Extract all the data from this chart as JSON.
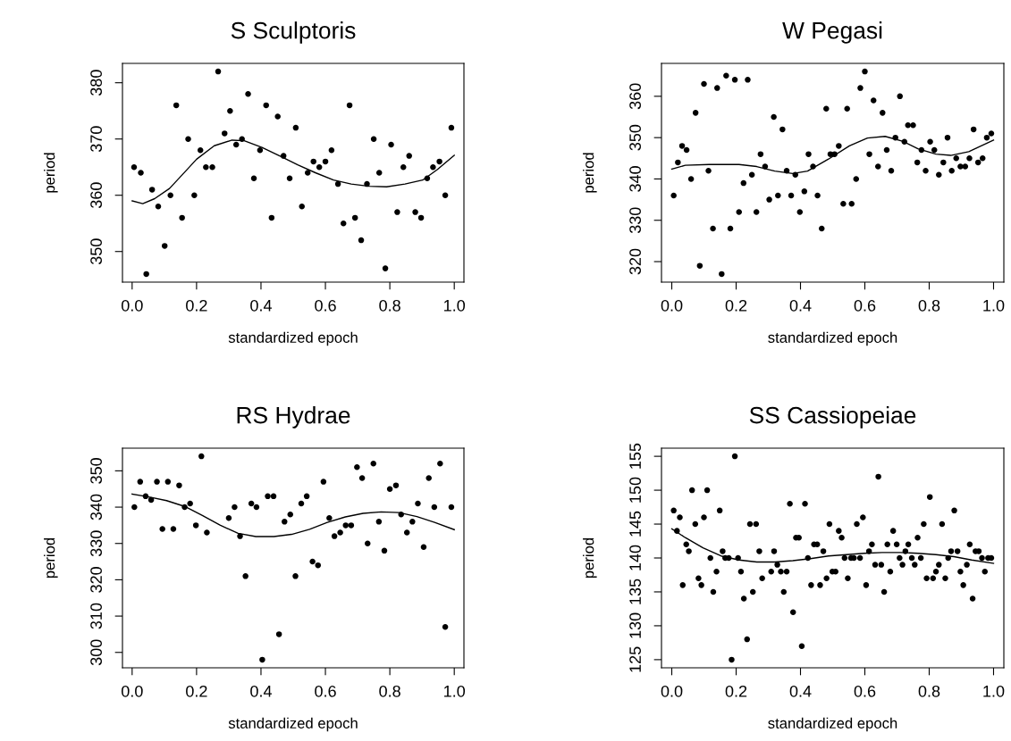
{
  "chart_data": [
    {
      "type": "scatter",
      "title": "S Sculptoris",
      "xlabel": "standardized epoch",
      "ylabel": "period",
      "xlim": [
        -0.03,
        1.03
      ],
      "ylim": [
        344.56,
        383.44
      ],
      "xticks": [
        {
          "value": 0,
          "label": "0.0"
        },
        {
          "value": 0.2,
          "label": "0.2"
        },
        {
          "value": 0.4,
          "label": "0.4"
        },
        {
          "value": 0.6,
          "label": "0.6"
        },
        {
          "value": 0.8,
          "label": "0.8"
        },
        {
          "value": 1,
          "label": "1.0"
        }
      ],
      "yticks": [
        350,
        360,
        370,
        380
      ],
      "grid": false,
      "marker": "circle",
      "series": [
        {
          "color": "#000000",
          "x": [
            0.006,
            0.027,
            0.044,
            0.062,
            0.081,
            0.101,
            0.119,
            0.137,
            0.155,
            0.174,
            0.193,
            0.212,
            0.229,
            0.249,
            0.267,
            0.287,
            0.304,
            0.323,
            0.341,
            0.36,
            0.378,
            0.397,
            0.416,
            0.433,
            0.452,
            0.47,
            0.489,
            0.508,
            0.527,
            0.545,
            0.563,
            0.581,
            0.6,
            0.619,
            0.639,
            0.656,
            0.675,
            0.692,
            0.711,
            0.729,
            0.75,
            0.767,
            0.786,
            0.804,
            0.823,
            0.842,
            0.86,
            0.879,
            0.897,
            0.916,
            0.934,
            0.954,
            0.972,
            0.991
          ],
          "values": [
            365,
            364,
            346,
            361,
            358,
            351,
            360,
            376,
            356,
            370,
            360,
            368,
            365,
            365,
            382,
            371,
            375,
            369,
            370,
            378,
            363,
            368,
            376,
            356,
            374,
            367,
            363,
            372,
            358,
            364,
            366,
            365,
            366,
            368,
            362,
            355,
            376,
            356,
            352,
            362,
            370,
            364,
            347,
            369,
            357,
            365,
            367,
            357,
            356,
            363,
            365,
            366,
            360,
            372
          ]
        },
        {
          "type": "line",
          "color": "#000000",
          "x": [
            0,
            0.033,
            0.07,
            0.116,
            0.163,
            0.2,
            0.255,
            0.31,
            0.348,
            0.403,
            0.458,
            0.514,
            0.569,
            0.625,
            0.68,
            0.736,
            0.79,
            0.847,
            0.902,
            0.948,
            1.0
          ],
          "marker": "none",
          "values": [
            359.0,
            358.5,
            359.4,
            361.2,
            364.1,
            366.4,
            368.8,
            369.8,
            369.7,
            368.5,
            367.0,
            365.4,
            364.0,
            362.7,
            362.0,
            361.6,
            361.5,
            362.0,
            362.7,
            364.6,
            367.1
          ]
        }
      ]
    },
    {
      "type": "scatter",
      "title": "W Pegasi",
      "xlabel": "standardized epoch",
      "ylabel": "period",
      "xlim": [
        -0.032,
        1.032
      ],
      "ylim": [
        315.04,
        367.96
      ],
      "xticks": [
        {
          "value": 0,
          "label": "0.0"
        },
        {
          "value": 0.2,
          "label": "0.2"
        },
        {
          "value": 0.4,
          "label": "0.4"
        },
        {
          "value": 0.6,
          "label": "0.6"
        },
        {
          "value": 0.8,
          "label": "0.8"
        },
        {
          "value": 1,
          "label": "1.0"
        }
      ],
      "yticks": [
        320,
        330,
        340,
        350,
        360
      ],
      "grid": false,
      "marker": "circle",
      "series": [
        {
          "color": "#000000",
          "x": [
            0.006,
            0.019,
            0.032,
            0.046,
            0.06,
            0.074,
            0.087,
            0.1,
            0.114,
            0.128,
            0.141,
            0.155,
            0.169,
            0.182,
            0.196,
            0.209,
            0.223,
            0.236,
            0.249,
            0.263,
            0.276,
            0.29,
            0.303,
            0.317,
            0.33,
            0.344,
            0.357,
            0.371,
            0.384,
            0.398,
            0.412,
            0.425,
            0.439,
            0.453,
            0.466,
            0.48,
            0.493,
            0.506,
            0.519,
            0.533,
            0.545,
            0.559,
            0.573,
            0.586,
            0.6,
            0.614,
            0.627,
            0.641,
            0.655,
            0.668,
            0.682,
            0.695,
            0.709,
            0.723,
            0.734,
            0.75,
            0.763,
            0.776,
            0.789,
            0.803,
            0.816,
            0.83,
            0.844,
            0.857,
            0.87,
            0.884,
            0.897,
            0.912,
            0.925,
            0.938,
            0.952,
            0.966,
            0.979,
            0.993
          ],
          "values": [
            336,
            344,
            348,
            347,
            340,
            356,
            319,
            363,
            342,
            328,
            362,
            317,
            365,
            328,
            364,
            332,
            339,
            364,
            341,
            332,
            346,
            343,
            335,
            355,
            336,
            352,
            342,
            336,
            341,
            332,
            337,
            346,
            343,
            336,
            328,
            357,
            346,
            346,
            348,
            334,
            357,
            334,
            340,
            362,
            366,
            346,
            359,
            343,
            356,
            347,
            342,
            350,
            360,
            349,
            353,
            353,
            344,
            347,
            342,
            349,
            347,
            341,
            344,
            350,
            342,
            345,
            343,
            343,
            345,
            352,
            344,
            345,
            350,
            351
          ]
        },
        {
          "type": "line",
          "color": "#000000",
          "x": [
            0,
            0.042,
            0.116,
            0.209,
            0.264,
            0.32,
            0.376,
            0.422,
            0.487,
            0.552,
            0.608,
            0.663,
            0.719,
            0.765,
            0.821,
            0.867,
            0.923,
            1.0
          ],
          "marker": "none",
          "values": [
            342.4,
            343.3,
            343.5,
            343.5,
            343.0,
            341.9,
            341.3,
            341.9,
            344.8,
            348.0,
            349.9,
            350.3,
            349.1,
            347.3,
            346.0,
            345.7,
            346.6,
            349.4
          ]
        }
      ]
    },
    {
      "type": "scatter",
      "title": "RS Hydrae",
      "xlabel": "standardized epoch",
      "ylabel": "period",
      "xlim": [
        -0.03,
        1.03
      ],
      "ylim": [
        295.76,
        356.24
      ],
      "xticks": [
        {
          "value": 0,
          "label": "0.0"
        },
        {
          "value": 0.2,
          "label": "0.2"
        },
        {
          "value": 0.4,
          "label": "0.4"
        },
        {
          "value": 0.6,
          "label": "0.6"
        },
        {
          "value": 0.8,
          "label": "0.8"
        },
        {
          "value": 1,
          "label": "1.0"
        }
      ],
      "yticks": [
        300,
        310,
        320,
        330,
        340,
        350
      ],
      "grid": false,
      "marker": "circle",
      "series": [
        {
          "color": "#000000",
          "x": [
            0.007,
            0.025,
            0.042,
            0.059,
            0.077,
            0.094,
            0.111,
            0.128,
            0.146,
            0.163,
            0.18,
            0.198,
            0.215,
            0.232,
            0.3,
            0.318,
            0.335,
            0.352,
            0.37,
            0.386,
            0.404,
            0.421,
            0.439,
            0.456,
            0.473,
            0.491,
            0.507,
            0.525,
            0.542,
            0.56,
            0.577,
            0.594,
            0.612,
            0.628,
            0.646,
            0.663,
            0.68,
            0.698,
            0.714,
            0.731,
            0.749,
            0.766,
            0.783,
            0.8,
            0.819,
            0.835,
            0.853,
            0.87,
            0.887,
            0.905,
            0.921,
            0.938,
            0.956,
            0.972,
            0.991
          ],
          "values": [
            340,
            347,
            343,
            342,
            347,
            334,
            347,
            334,
            346,
            340,
            341,
            335,
            354,
            333,
            337,
            340,
            332,
            321,
            341,
            340,
            298,
            343,
            343,
            305,
            336,
            338,
            321,
            341,
            343,
            325,
            324,
            347,
            337,
            332,
            333,
            335,
            335,
            351,
            348,
            330,
            352,
            336,
            328,
            345,
            346,
            338,
            333,
            336,
            341,
            329,
            348,
            340,
            352,
            307,
            340
          ]
        },
        {
          "type": "line",
          "color": "#000000",
          "x": [
            0,
            0.052,
            0.107,
            0.163,
            0.218,
            0.274,
            0.329,
            0.384,
            0.44,
            0.495,
            0.551,
            0.606,
            0.662,
            0.717,
            0.773,
            0.828,
            0.884,
            0.939,
            1.0
          ],
          "marker": "none",
          "values": [
            343.6,
            342.8,
            341.8,
            340.2,
            337.7,
            335.0,
            332.8,
            331.9,
            331.9,
            332.5,
            333.9,
            335.8,
            337.3,
            338.3,
            338.7,
            338.5,
            337.4,
            335.8,
            333.8
          ]
        }
      ]
    },
    {
      "type": "scatter",
      "title": "SS Cassiopeiae",
      "xlabel": "standardized epoch",
      "ylabel": "period",
      "xlim": [
        -0.032,
        1.032
      ],
      "ylim": [
        123.8,
        156.2
      ],
      "xticks": [
        {
          "value": 0,
          "label": "0.0"
        },
        {
          "value": 0.2,
          "label": "0.2"
        },
        {
          "value": 0.4,
          "label": "0.4"
        },
        {
          "value": 0.6,
          "label": "0.6"
        },
        {
          "value": 0.8,
          "label": "0.8"
        },
        {
          "value": 1,
          "label": "1.0"
        }
      ],
      "yticks": [
        125,
        130,
        135,
        140,
        145,
        150,
        155
      ],
      "grid": false,
      "marker": "circle",
      "series": [
        {
          "color": "#000000",
          "x": [
            0.006,
            0.016,
            0.025,
            0.034,
            0.045,
            0.053,
            0.063,
            0.073,
            0.083,
            0.092,
            0.1,
            0.11,
            0.12,
            0.129,
            0.139,
            0.149,
            0.158,
            0.166,
            0.177,
            0.186,
            0.196,
            0.206,
            0.215,
            0.224,
            0.234,
            0.243,
            0.252,
            0.262,
            0.272,
            0.281,
            0.309,
            0.318,
            0.328,
            0.339,
            0.348,
            0.357,
            0.367,
            0.377,
            0.386,
            0.395,
            0.404,
            0.414,
            0.423,
            0.433,
            0.442,
            0.452,
            0.461,
            0.471,
            0.481,
            0.49,
            0.499,
            0.509,
            0.519,
            0.528,
            0.537,
            0.547,
            0.557,
            0.566,
            0.575,
            0.585,
            0.594,
            0.604,
            0.613,
            0.622,
            0.632,
            0.642,
            0.651,
            0.66,
            0.67,
            0.679,
            0.688,
            0.699,
            0.708,
            0.717,
            0.726,
            0.735,
            0.746,
            0.755,
            0.764,
            0.774,
            0.783,
            0.792,
            0.802,
            0.812,
            0.821,
            0.83,
            0.84,
            0.85,
            0.859,
            0.868,
            0.878,
            0.888,
            0.897,
            0.906,
            0.917,
            0.926,
            0.935,
            0.944,
            0.954,
            0.964,
            0.973,
            0.983,
            0.993
          ],
          "values": [
            147,
            144,
            146,
            136,
            142,
            141,
            150,
            145,
            137,
            136,
            146,
            150,
            140,
            135,
            138,
            147,
            141,
            140,
            140,
            125,
            155,
            140,
            138,
            134,
            128,
            145,
            135,
            145,
            141,
            137,
            138,
            141,
            139,
            138,
            135,
            138,
            148,
            132,
            143,
            143,
            127,
            148,
            140,
            136,
            142,
            142,
            136,
            141,
            137,
            145,
            138,
            138,
            144,
            143,
            140,
            137,
            140,
            140,
            145,
            140,
            146,
            136,
            141,
            142,
            139,
            152,
            139,
            135,
            142,
            138,
            144,
            142,
            140,
            139,
            141,
            142,
            140,
            139,
            143,
            140,
            145,
            137,
            149,
            137,
            138,
            139,
            145,
            137,
            140,
            141,
            147,
            141,
            138,
            136,
            139,
            142,
            134,
            141,
            141,
            140,
            138,
            140,
            140
          ]
        },
        {
          "type": "line",
          "color": "#000000",
          "x": [
            0,
            0.042,
            0.097,
            0.153,
            0.209,
            0.264,
            0.32,
            0.376,
            0.431,
            0.487,
            0.543,
            0.598,
            0.654,
            0.71,
            0.765,
            0.821,
            0.877,
            0.932,
            1.0
          ],
          "marker": "none",
          "values": [
            144.3,
            143.0,
            141.5,
            140.3,
            139.7,
            139.4,
            139.4,
            139.6,
            139.9,
            140.3,
            140.5,
            140.7,
            140.8,
            140.8,
            140.7,
            140.5,
            140.2,
            139.7,
            139.2
          ]
        }
      ]
    }
  ]
}
